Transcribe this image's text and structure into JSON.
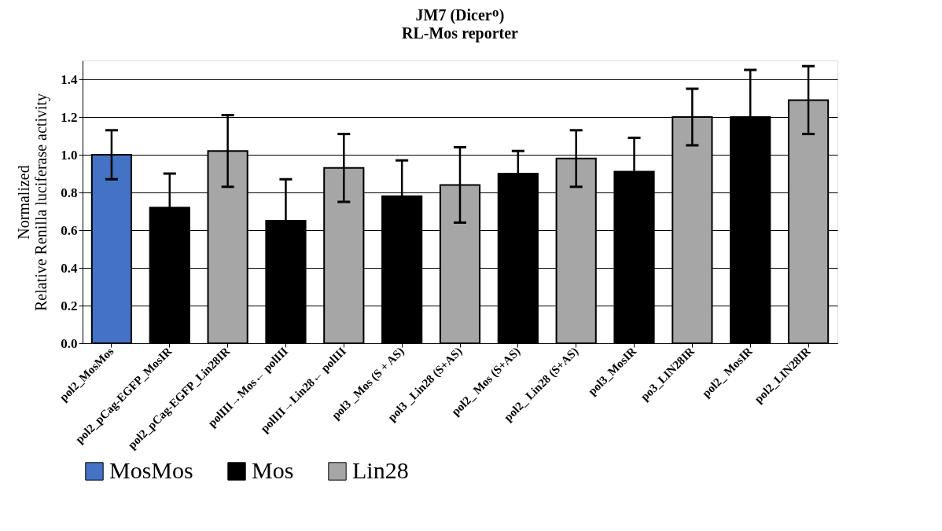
{
  "chart_data": {
    "type": "bar",
    "title": "JM7 (Dicerᴼ)",
    "subtitle": "RL-Mos reporter",
    "ylabel": "Normalized\nRelative Renilla luciferase activity",
    "categories": [
      "pol2_MosMos",
      "pol2_pCag-EGFP_MosIR",
      "pol2_pCag-EGFP_Lin28IR",
      "polIII→Mos← polIII",
      "polIII→Lin28← polIII",
      "pol3 _Mos (S + AS)",
      "pol3 _Lin28 (S+AS)",
      "pol2_ Mos (S+AS)",
      "pol2_ Lin28 (S+AS)",
      "pol3_MosIR",
      "po3_LIN28IR",
      "pol2_ MosIR",
      "pol2_LIN28IR"
    ],
    "series": [
      {
        "name": "MosMos",
        "color": "#4472c4",
        "values": [
          1.0,
          null,
          null,
          null,
          null,
          null,
          null,
          null,
          null,
          null,
          null,
          null,
          null
        ],
        "errors": [
          0.13,
          null,
          null,
          null,
          null,
          null,
          null,
          null,
          null,
          null,
          null,
          null,
          null
        ]
      },
      {
        "name": "Mos",
        "color": "#000000",
        "values": [
          null,
          0.72,
          null,
          0.65,
          null,
          0.78,
          null,
          0.9,
          null,
          0.91,
          null,
          1.2,
          null
        ],
        "errors": [
          null,
          0.18,
          null,
          0.22,
          null,
          0.19,
          null,
          0.12,
          null,
          0.18,
          null,
          0.25,
          null
        ]
      },
      {
        "name": "Lin28",
        "color": "#a6a6a6",
        "values": [
          null,
          null,
          1.02,
          null,
          0.93,
          null,
          0.84,
          null,
          0.98,
          null,
          1.2,
          null,
          1.29
        ],
        "errors": [
          null,
          null,
          0.19,
          null,
          0.18,
          null,
          0.2,
          null,
          0.15,
          null,
          0.15,
          null,
          0.18
        ]
      }
    ],
    "ylim": [
      0,
      1.5
    ],
    "yticks": [
      {
        "value": 0,
        "label": "0.0"
      },
      {
        "value": 0.2,
        "label": "0.2"
      },
      {
        "value": 0.4,
        "label": "0.4"
      },
      {
        "value": 0.6,
        "label": "0.6"
      },
      {
        "value": 0.8,
        "label": "0.8"
      },
      {
        "value": 1.0,
        "label": "1.0"
      },
      {
        "value": 1.2,
        "label": "1.2"
      },
      {
        "value": 1.4,
        "label": "1.4"
      }
    ],
    "grid": "y",
    "legend": "bottom"
  }
}
